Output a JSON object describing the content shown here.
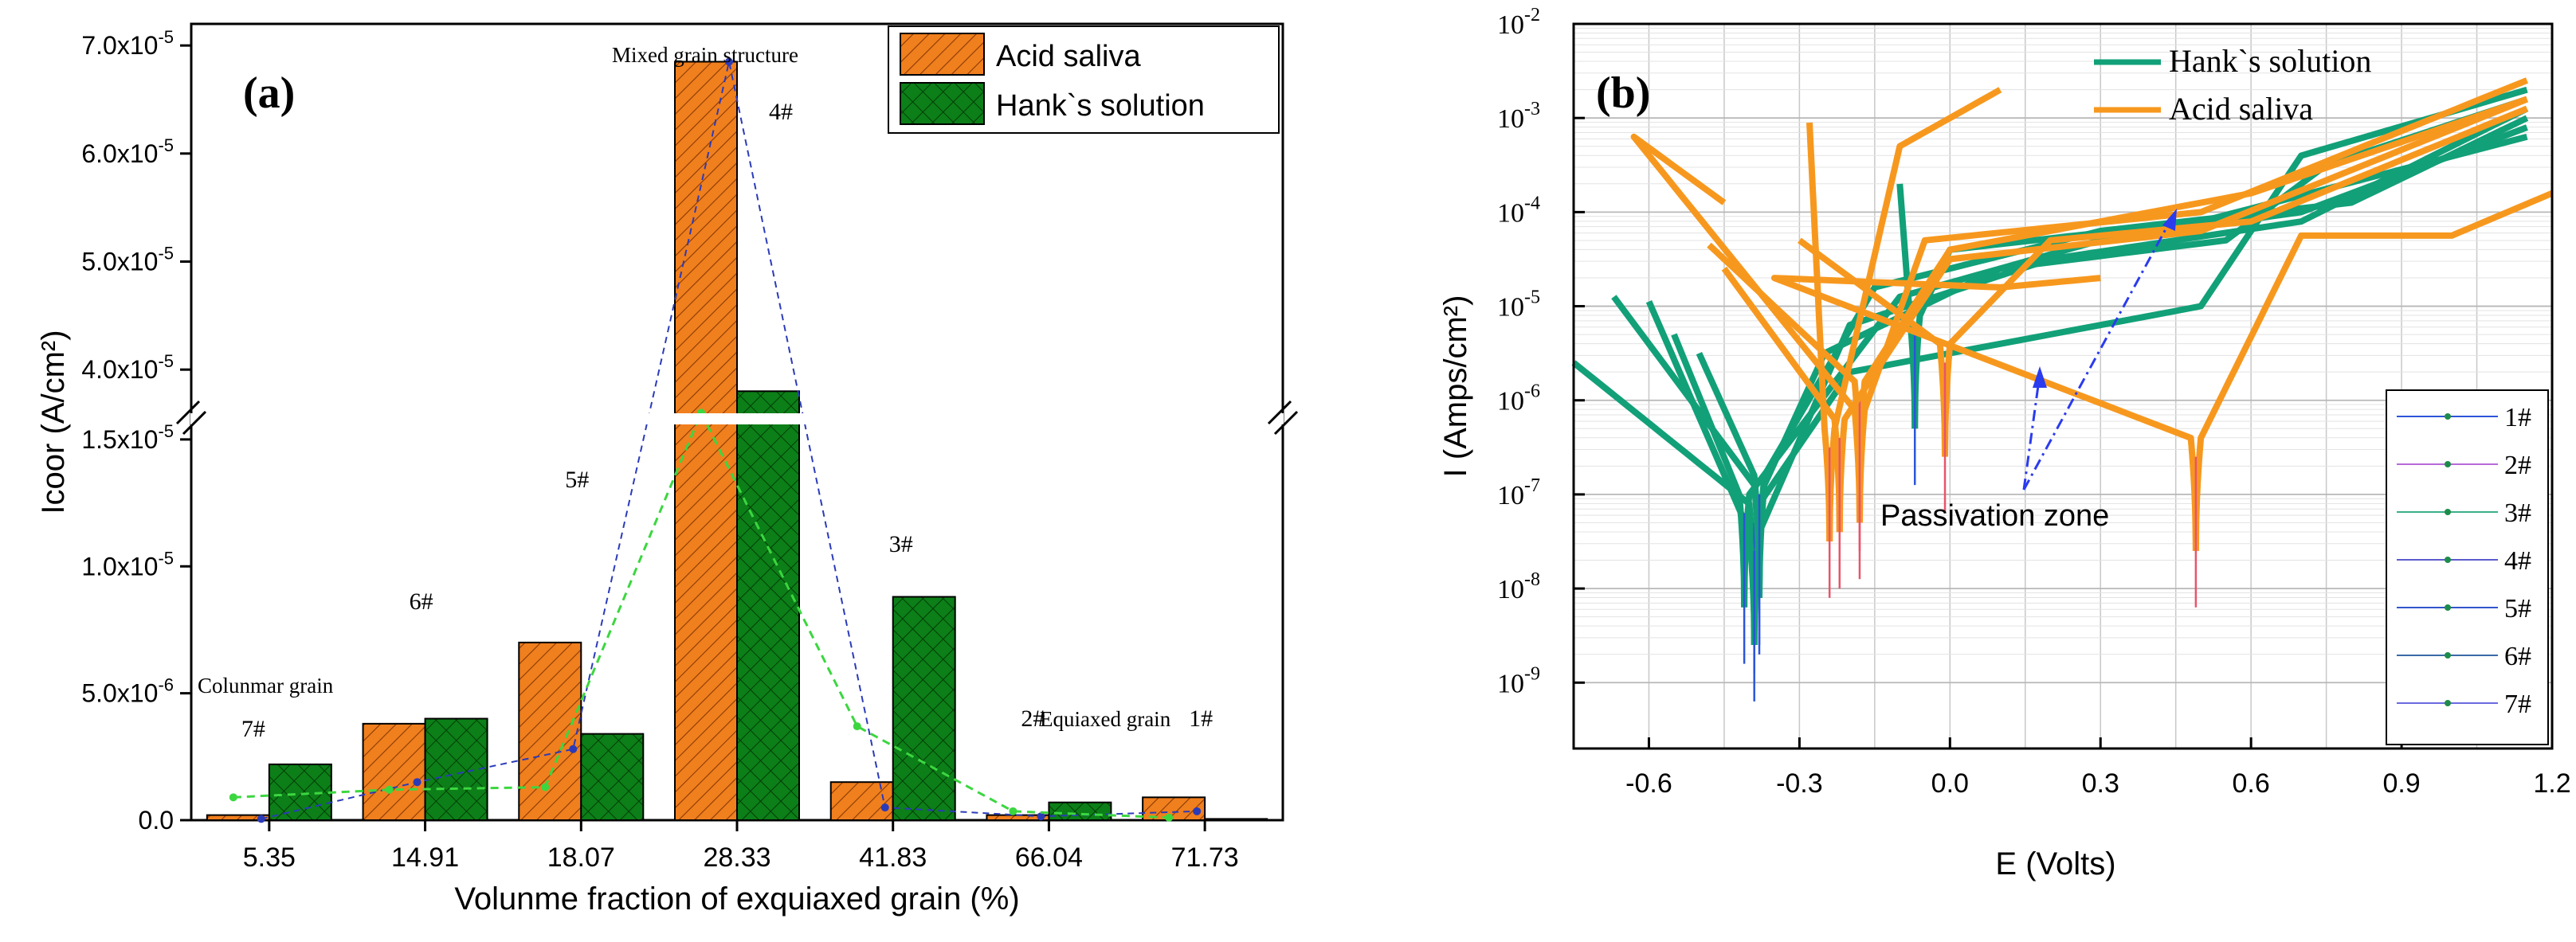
{
  "chart_data": [
    {
      "panel_label": "(a)",
      "type": "bar",
      "title": "",
      "xlabel": "Volunme fraction of  exquiaxed grain (%)",
      "ylabel": "Icoor (A/cm²)",
      "categories": [
        "5.35",
        "14.91",
        "18.07",
        "28.33",
        "41.83",
        "66.04",
        "71.73"
      ],
      "sample_labels": [
        "7#",
        "6#",
        "5#",
        "4#",
        "3#",
        "2#",
        "1#"
      ],
      "series": [
        {
          "name": "Acid saliva",
          "color": "#f07f1e",
          "values": [
            2e-07,
            3.8e-06,
            7e-06,
            6.85e-05,
            1.5e-06,
            2e-07,
            9e-07
          ]
        },
        {
          "name": "Hank`s solution",
          "color": "#0c7f18",
          "values": [
            2.2e-06,
            4e-06,
            3.4e-06,
            3.8e-05,
            8.8e-06,
            7e-07,
            5e-08
          ]
        }
      ],
      "trend_lines": [
        {
          "name": "Acid saliva trend",
          "color": "#2b3bb8",
          "values": [
            5e-08,
            1.5e-06,
            2.8e-06,
            6.85e-05,
            5e-07,
            1.5e-07,
            3.5e-07
          ]
        },
        {
          "name": "Hank`s solution trend",
          "color": "#3cd640",
          "values": [
            9e-07,
            1.2e-06,
            1.3e-06,
            3.6e-05,
            3.7e-06,
            3.5e-07,
            1e-07
          ]
        }
      ],
      "y_axis_lower": {
        "ylim": [
          0,
          1.6e-05
        ],
        "ticks": [
          0,
          5e-06,
          1e-05,
          1.5e-05
        ],
        "tick_labels": [
          "0.0",
          "5.0x10",
          "1.0x10",
          "1.5x10"
        ],
        "tick_exps": [
          "",
          "-6",
          "-5",
          "-5"
        ]
      },
      "y_axis_upper": {
        "ylim": [
          3.5e-05,
          7.2e-05
        ],
        "ticks": [
          4e-05,
          5e-05,
          6e-05,
          7e-05
        ],
        "tick_labels": [
          "4.0x10",
          "5.0x10",
          "6.0x10",
          "7.0x10"
        ],
        "tick_exps": [
          "-5",
          "-5",
          "-5",
          "-5"
        ]
      },
      "annotations": [
        "Mixed grain structure",
        "Colunmar grain",
        "Equiaxed  grain"
      ],
      "legend": {
        "placement": "top-right",
        "entries": [
          "Acid saliva",
          "Hank`s solution"
        ]
      }
    },
    {
      "panel_label": "(b)",
      "type": "line",
      "title": "",
      "xlabel": "E (Volts)",
      "ylabel": "I (Amps/cm²)",
      "xscale": "linear",
      "yscale": "log",
      "xlim": [
        -0.75,
        1.2
      ],
      "xticks": [
        -0.6,
        -0.3,
        0.0,
        0.3,
        0.6,
        0.9,
        1.2
      ],
      "xtick_labels": [
        "-0.6",
        "-0.3",
        "0.0",
        "0.3",
        "0.6",
        "0.9",
        "1.2"
      ],
      "ylim_exp": [
        -9.7,
        -2
      ],
      "ytick_exps": [
        -9,
        -8,
        -7,
        -6,
        -5,
        -4,
        -3,
        -2
      ],
      "ytick_labels": [
        "10",
        "10",
        "10",
        "10",
        "10",
        "10",
        "10",
        "10"
      ],
      "ytick_sups": [
        "-9",
        "-8",
        "-7",
        "-6",
        "-5",
        "-4",
        "-3",
        "-2"
      ],
      "series_groups": [
        {
          "name": "Hank`s solution",
          "color": "#12a078",
          "curves": [
            {
              "e_corr": -0.39,
              "log_i_corr": -8.3,
              "cathodic": [
                [
                  -0.75,
                  -5.6
                ]
              ],
              "anodic": [
                [
                  -0.2,
                  -5.7
                ],
                [
                  0.5,
                  -5.0
                ],
                [
                  0.7,
                  -3.4
                ],
                [
                  1.15,
                  -2.7
                ]
              ]
            },
            {
              "e_corr": -0.38,
              "log_i_corr": -8.1,
              "cathodic": [
                [
                  -0.67,
                  -4.9
                ]
              ],
              "anodic": [
                [
                  -0.25,
                  -5.5
                ],
                [
                  0.1,
                  -4.6
                ],
                [
                  0.55,
                  -4.3
                ],
                [
                  0.75,
                  -3.5
                ],
                [
                  1.15,
                  -2.8
                ]
              ]
            },
            {
              "e_corr": -0.39,
              "log_i_corr": -8.6,
              "cathodic": [
                [
                  -0.6,
                  -4.95
                ]
              ],
              "anodic": [
                [
                  -0.2,
                  -5.2
                ],
                [
                  0.2,
                  -4.5
                ],
                [
                  0.7,
                  -4.1
                ],
                [
                  1.15,
                  -2.9
                ]
              ]
            },
            {
              "e_corr": -0.38,
              "log_i_corr": -8.0,
              "cathodic": [
                [
                  -0.5,
                  -5.5
                ]
              ],
              "anodic": [
                [
                  -0.15,
                  -4.8
                ],
                [
                  0.3,
                  -4.2
                ],
                [
                  0.8,
                  -3.9
                ],
                [
                  1.15,
                  -3.0
                ]
              ]
            },
            {
              "e_corr": -0.41,
              "log_i_corr": -8.2,
              "cathodic": [
                [
                  -0.55,
                  -5.3
                ]
              ],
              "anodic": [
                [
                  -0.1,
                  -4.9
                ],
                [
                  0.3,
                  -4.3
                ],
                [
                  0.7,
                  -4.0
                ],
                [
                  1.15,
                  -3.1
                ]
              ]
            },
            {
              "e_corr": -0.07,
              "log_i_corr": -6.3,
              "cathodic": [
                [
                  -0.1,
                  -3.7
                ]
              ],
              "anodic": [
                [
                  0.0,
                  -4.4
                ],
                [
                  0.5,
                  -4.1
                ],
                [
                  1.15,
                  -3.2
                ]
              ]
            }
          ]
        },
        {
          "name": "Acid saliva",
          "color": "#f7981e",
          "curves": [
            {
              "e_corr": -0.18,
              "log_i_corr": -7.3,
              "cathodic": [
                [
                  -0.63,
                  -3.2
                ],
                [
                  -0.45,
                  -3.9
                ]
              ],
              "anodic": [
                [
                  -0.05,
                  -4.3
                ],
                [
                  0.5,
                  -4.0
                ],
                [
                  1.15,
                  -2.6
                ]
              ]
            },
            {
              "e_corr": -0.24,
              "log_i_corr": -7.5,
              "cathodic": [
                [
                  -0.28,
                  -3.05
                ]
              ],
              "anodic": [
                [
                  -0.1,
                  -3.3
                ],
                [
                  0.1,
                  -2.7
                ]
              ]
            },
            {
              "e_corr": -0.18,
              "log_i_corr": -7.0,
              "cathodic": [
                [
                  -0.48,
                  -4.35
                ]
              ],
              "anodic": [
                [
                  0.0,
                  -4.4
                ],
                [
                  0.6,
                  -3.8
                ],
                [
                  1.15,
                  -2.8
                ]
              ]
            },
            {
              "e_corr": -0.01,
              "log_i_corr": -6.6,
              "cathodic": [
                [
                  -0.3,
                  -4.3
                ]
              ],
              "anodic": [
                [
                  0.2,
                  -4.3
                ],
                [
                  0.6,
                  -4.1
                ],
                [
                  1.15,
                  -2.9
                ]
              ]
            },
            {
              "e_corr": 0.49,
              "log_i_corr": -7.6,
              "cathodic": [
                [
                  -0.35,
                  -4.7
                ],
                [
                  0.1,
                  -4.8
                ],
                [
                  0.3,
                  -4.7
                ]
              ],
              "anodic": [
                [
                  0.7,
                  -4.25
                ],
                [
                  1.0,
                  -4.25
                ],
                [
                  1.2,
                  -3.8
                ]
              ]
            },
            {
              "e_corr": -0.22,
              "log_i_corr": -7.4,
              "cathodic": [
                [
                  -0.45,
                  -4.6
                ]
              ],
              "anodic": [
                [
                  0.0,
                  -4.5
                ],
                [
                  0.5,
                  -4.2
                ],
                [
                  1.15,
                  -2.8
                ]
              ]
            }
          ]
        }
      ],
      "annotations": [
        "Passivation zone"
      ],
      "legend": {
        "placement": "top-center",
        "entries": [
          "Hank`s solution",
          "Acid saliva"
        ]
      },
      "sample_legend": {
        "placement": "bottom-right",
        "entries": [
          "1#",
          "2#",
          "3#",
          "4#",
          "5#",
          "6#",
          "7#"
        ]
      }
    }
  ]
}
